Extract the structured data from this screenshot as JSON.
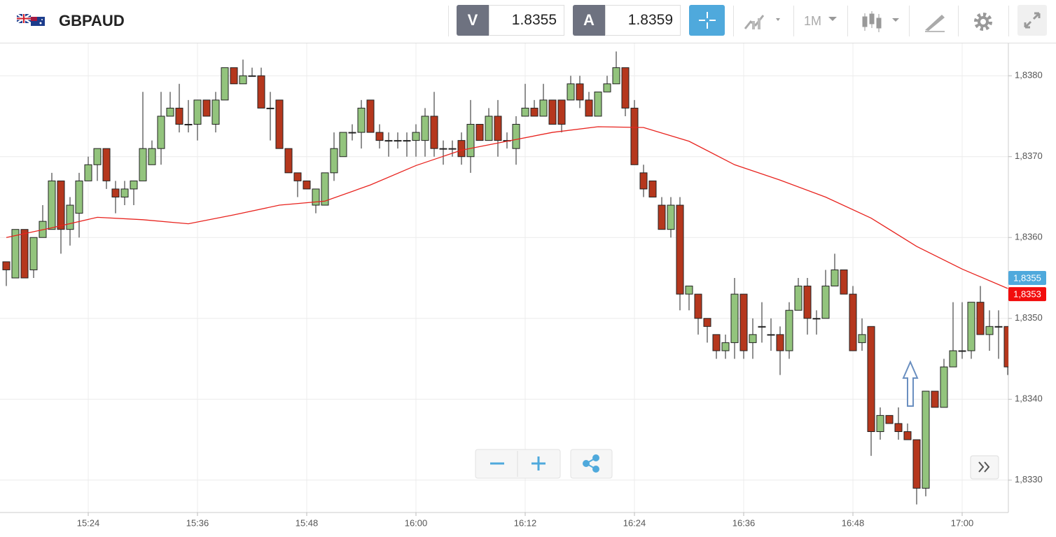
{
  "toolbar": {
    "symbol": "GBPAUD",
    "bid_label": "V",
    "bid": 1.8355,
    "ask_label": "A",
    "ask": 1.8359,
    "timeframe": "1M"
  },
  "chart_data": {
    "type": "candlestick",
    "x": [
      "15:15",
      "15:16",
      "15:17",
      "15:18",
      "15:19",
      "15:20",
      "15:21",
      "15:22",
      "15:23",
      "15:24",
      "15:25",
      "15:26",
      "15:27",
      "15:28",
      "15:29",
      "15:30",
      "15:31",
      "15:32",
      "15:33",
      "15:34",
      "15:35",
      "15:36",
      "15:37",
      "15:38",
      "15:39",
      "15:40",
      "15:41",
      "15:42",
      "15:43",
      "15:44",
      "15:45",
      "15:46",
      "15:47",
      "15:48",
      "15:49",
      "15:50",
      "15:51",
      "15:52",
      "15:53",
      "15:54",
      "15:55",
      "15:56",
      "15:57",
      "15:58",
      "15:59",
      "16:00",
      "16:01",
      "16:02",
      "16:03",
      "16:04",
      "16:05",
      "16:06",
      "16:07",
      "16:08",
      "16:09",
      "16:10",
      "16:11",
      "16:12",
      "16:13",
      "16:14",
      "16:15",
      "16:16",
      "16:17",
      "16:18",
      "16:19",
      "16:20",
      "16:21",
      "16:22",
      "16:23",
      "16:24",
      "16:25",
      "16:26",
      "16:27",
      "16:28",
      "16:29",
      "16:30",
      "16:31",
      "16:32",
      "16:33",
      "16:34",
      "16:35",
      "16:36",
      "16:37",
      "16:38",
      "16:39",
      "16:40",
      "16:41",
      "16:42",
      "16:43",
      "16:44",
      "16:45",
      "16:46",
      "16:47",
      "16:48",
      "16:49",
      "16:50",
      "16:51",
      "16:52",
      "16:53",
      "16:54",
      "16:55",
      "16:56",
      "16:57",
      "16:58",
      "16:59",
      "17:00",
      "17:01",
      "17:02",
      "17:03",
      "17:04",
      "17:05"
    ],
    "open": [
      1.8357,
      1.8355,
      1.8361,
      1.8356,
      1.836,
      1.8361,
      1.8367,
      1.8361,
      1.8363,
      1.8367,
      1.8369,
      1.8371,
      1.8366,
      1.8365,
      1.8366,
      1.8367,
      1.8369,
      1.8371,
      1.8375,
      1.8376,
      1.8374,
      1.8374,
      1.8377,
      1.8374,
      1.8377,
      1.8381,
      1.8379,
      1.838,
      1.838,
      1.8376,
      1.8377,
      1.8371,
      1.8368,
      1.8367,
      1.8364,
      1.8364,
      1.8368,
      1.837,
      1.8373,
      1.8373,
      1.8377,
      1.8373,
      1.8372,
      1.8372,
      1.8372,
      1.8372,
      1.8372,
      1.8375,
      1.8371,
      1.8371,
      1.8372,
      1.837,
      1.8374,
      1.8372,
      1.8375,
      1.8372,
      1.8371,
      1.8375,
      1.8376,
      1.8375,
      1.8377,
      1.8377,
      1.8377,
      1.8379,
      1.8377,
      1.8375,
      1.8378,
      1.8379,
      1.8381,
      1.8376,
      1.8368,
      1.8367,
      1.8364,
      1.8361,
      1.8364,
      1.8353,
      1.8353,
      1.835,
      1.8348,
      1.8346,
      1.8347,
      1.8353,
      1.8347,
      1.8349,
      1.8348,
      1.8348,
      1.8346,
      1.8351,
      1.8354,
      1.835,
      1.835,
      1.8354,
      1.8356,
      1.8353,
      1.8347,
      1.8349,
      1.8336,
      1.8338,
      1.8337,
      1.8336,
      1.8335,
      1.8329,
      1.8341,
      1.8339,
      1.8344,
      1.8346,
      1.8346,
      1.8352,
      1.8348,
      1.8349,
      1.8349
    ],
    "high": [
      1.8357,
      1.8361,
      1.8361,
      1.836,
      1.8364,
      1.8368,
      1.8367,
      1.8365,
      1.8368,
      1.837,
      1.8371,
      1.8371,
      1.8367,
      1.8367,
      1.8367,
      1.8378,
      1.8372,
      1.8378,
      1.8378,
      1.8379,
      1.8377,
      1.8377,
      1.8377,
      1.8378,
      1.8381,
      1.8381,
      1.8382,
      1.8381,
      1.8381,
      1.8378,
      1.8377,
      1.8371,
      1.8368,
      1.8367,
      1.8366,
      1.8368,
      1.8373,
      1.8373,
      1.8374,
      1.8377,
      1.8377,
      1.8374,
      1.8373,
      1.8373,
      1.8373,
      1.8374,
      1.8376,
      1.8378,
      1.8372,
      1.8372,
      1.8373,
      1.8377,
      1.8374,
      1.8376,
      1.8377,
      1.8373,
      1.8375,
      1.8379,
      1.8377,
      1.8379,
      1.8377,
      1.8377,
      1.838,
      1.838,
      1.8378,
      1.8378,
      1.838,
      1.8383,
      1.8381,
      1.8377,
      1.8369,
      1.8367,
      1.8365,
      1.8365,
      1.8365,
      1.8354,
      1.8353,
      1.835,
      1.8348,
      1.8348,
      1.8355,
      1.8353,
      1.835,
      1.8352,
      1.835,
      1.8349,
      1.8352,
      1.8355,
      1.8355,
      1.8351,
      1.8356,
      1.8358,
      1.8356,
      1.8354,
      1.835,
      1.8349,
      1.8339,
      1.8338,
      1.8339,
      1.8337,
      1.8335,
      1.8341,
      1.8341,
      1.8345,
      1.8352,
      1.8352,
      1.8352,
      1.8354,
      1.8351,
      1.8351,
      1.8349
    ],
    "low": [
      1.8354,
      1.8355,
      1.8355,
      1.8355,
      1.836,
      1.8361,
      1.8358,
      1.8359,
      1.836,
      1.8367,
      1.8367,
      1.8366,
      1.8363,
      1.8364,
      1.8364,
      1.8367,
      1.8369,
      1.8369,
      1.8375,
      1.8373,
      1.8373,
      1.8372,
      1.8375,
      1.8373,
      1.8377,
      1.8379,
      1.8379,
      1.838,
      1.8376,
      1.8372,
      1.8371,
      1.8368,
      1.8365,
      1.8366,
      1.8363,
      1.8364,
      1.8367,
      1.837,
      1.8372,
      1.8371,
      1.8373,
      1.8371,
      1.837,
      1.8371,
      1.837,
      1.837,
      1.837,
      1.837,
      1.8369,
      1.837,
      1.8369,
      1.8368,
      1.8372,
      1.8372,
      1.837,
      1.8371,
      1.8369,
      1.8375,
      1.8375,
      1.8375,
      1.8374,
      1.8373,
      1.8377,
      1.8376,
      1.8375,
      1.8375,
      1.8378,
      1.8379,
      1.8375,
      1.8369,
      1.8365,
      1.8365,
      1.8361,
      1.836,
      1.8351,
      1.8351,
      1.8348,
      1.8347,
      1.8345,
      1.8345,
      1.8345,
      1.8345,
      1.8345,
      1.8347,
      1.8346,
      1.8343,
      1.8345,
      1.8351,
      1.8348,
      1.8348,
      1.835,
      1.8354,
      1.8353,
      1.8346,
      1.8346,
      1.8333,
      1.8335,
      1.8337,
      1.8335,
      1.8335,
      1.8327,
      1.8328,
      1.8339,
      1.8339,
      1.8344,
      1.8345,
      1.8345,
      1.8348,
      1.8346,
      1.8345,
      1.8343
    ],
    "close": [
      1.8356,
      1.8361,
      1.8355,
      1.836,
      1.8362,
      1.8367,
      1.8361,
      1.8364,
      1.8367,
      1.8369,
      1.8371,
      1.8367,
      1.8365,
      1.8366,
      1.8367,
      1.8371,
      1.8371,
      1.8375,
      1.8376,
      1.8374,
      1.8374,
      1.8377,
      1.8375,
      1.8377,
      1.8381,
      1.8379,
      1.838,
      1.838,
      1.8376,
      1.8376,
      1.8371,
      1.8368,
      1.8367,
      1.8366,
      1.8366,
      1.8368,
      1.8371,
      1.8373,
      1.8373,
      1.8376,
      1.8373,
      1.8372,
      1.8372,
      1.8372,
      1.8372,
      1.8373,
      1.8375,
      1.8371,
      1.8371,
      1.8371,
      1.837,
      1.8374,
      1.8372,
      1.8375,
      1.8372,
      1.8372,
      1.8374,
      1.8376,
      1.8375,
      1.8377,
      1.8374,
      1.8374,
      1.8379,
      1.8377,
      1.8375,
      1.8378,
      1.8379,
      1.8381,
      1.8376,
      1.8369,
      1.8366,
      1.8365,
      1.8361,
      1.8364,
      1.8353,
      1.8354,
      1.835,
      1.8349,
      1.8346,
      1.8347,
      1.8353,
      1.8346,
      1.8348,
      1.8349,
      1.8348,
      1.8346,
      1.8351,
      1.8354,
      1.835,
      1.835,
      1.8354,
      1.8356,
      1.8353,
      1.8346,
      1.8348,
      1.8336,
      1.8338,
      1.8337,
      1.8336,
      1.8335,
      1.8329,
      1.8341,
      1.8339,
      1.8344,
      1.8346,
      1.8346,
      1.8352,
      1.8348,
      1.8349,
      1.8349,
      1.8344
    ],
    "up_color": "#93c47d",
    "down_color": "#b5371d",
    "moving_average": {
      "color": "#e8231e",
      "x": [
        "15:15",
        "15:20",
        "15:25",
        "15:30",
        "15:35",
        "15:40",
        "15:45",
        "15:50",
        "15:55",
        "16:00",
        "16:05",
        "16:10",
        "16:15",
        "16:20",
        "16:25",
        "16:30",
        "16:35",
        "16:40",
        "16:45",
        "16:50",
        "16:55",
        "17:00",
        "17:05"
      ],
      "values": [
        1.836,
        1.83612,
        1.83625,
        1.83622,
        1.83617,
        1.83628,
        1.8364,
        1.83645,
        1.83665,
        1.83689,
        1.83708,
        1.83719,
        1.8373,
        1.83737,
        1.83736,
        1.83719,
        1.8369,
        1.83671,
        1.8365,
        1.83624,
        1.83589,
        1.83561,
        1.83537
      ]
    },
    "price_tags": [
      {
        "value": 1.8355,
        "label": "1,8355",
        "color": "#4fa9dc"
      },
      {
        "value": 1.8353,
        "label": "1,8353",
        "color": "#f20d0d"
      }
    ],
    "ylim": [
      1.8326,
      1.8384
    ],
    "yticks": [
      {
        "value": 1.833,
        "label": "1,8330"
      },
      {
        "value": 1.834,
        "label": "1,8340"
      },
      {
        "value": 1.835,
        "label": "1,8350"
      },
      {
        "value": 1.836,
        "label": "1,8360"
      },
      {
        "value": 1.837,
        "label": "1,8370"
      },
      {
        "value": 1.838,
        "label": "1,8380"
      }
    ],
    "xticks": [
      "15:24",
      "15:36",
      "15:48",
      "16:00",
      "16:12",
      "16:24",
      "16:36",
      "16:48",
      "17:00"
    ],
    "grid": true
  }
}
